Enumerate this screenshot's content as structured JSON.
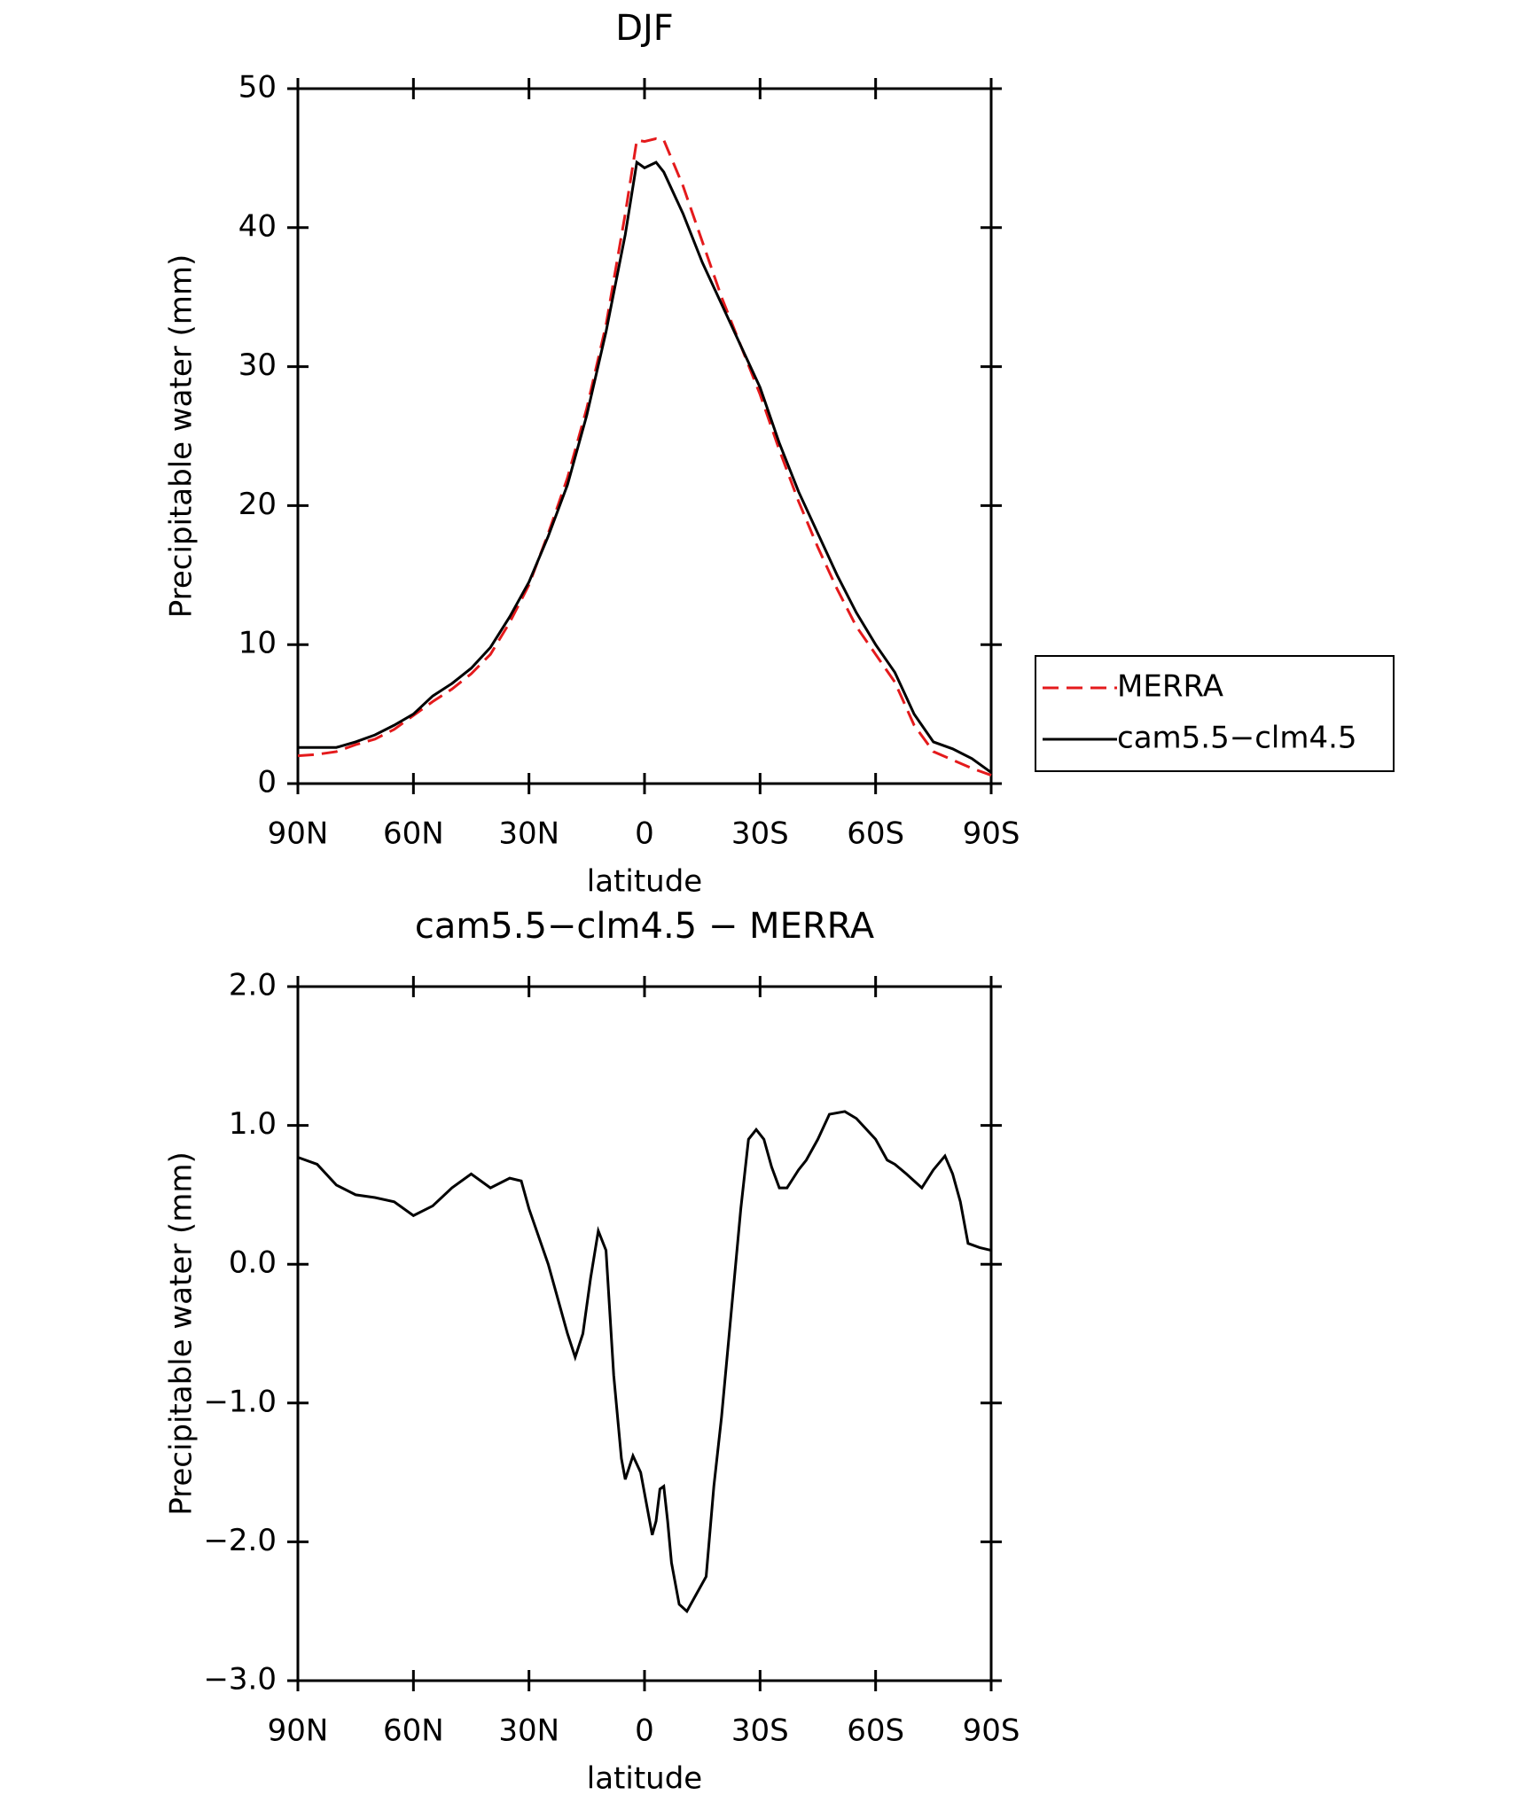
{
  "chart_data": [
    {
      "type": "line",
      "title": "DJF",
      "xlabel": "latitude",
      "ylabel": "Precipitable water (mm)",
      "x": [
        90,
        85,
        80,
        75,
        70,
        65,
        60,
        55,
        50,
        45,
        40,
        35,
        30,
        25,
        20,
        15,
        10,
        5,
        2,
        0,
        -3,
        -5,
        -10,
        -15,
        -20,
        -25,
        -30,
        -35,
        -40,
        -45,
        -50,
        -55,
        -60,
        -65,
        -70,
        -75,
        -80,
        -85,
        -90
      ],
      "xlim": [
        90,
        -90
      ],
      "xticks": [
        {
          "value": 90,
          "label": "90N"
        },
        {
          "value": 60,
          "label": "60N"
        },
        {
          "value": 30,
          "label": "30N"
        },
        0,
        {
          "value": -30,
          "label": "30S"
        },
        {
          "value": -60,
          "label": "60S"
        },
        {
          "value": -90,
          "label": "90S"
        }
      ],
      "ylim": [
        0,
        50
      ],
      "yticks": [
        0,
        10,
        20,
        30,
        40,
        50
      ],
      "legend": "right",
      "series": [
        {
          "name": "MERRA",
          "color": "#e41a1c",
          "linestyle": "dashed",
          "values": [
            2.0,
            2.1,
            2.3,
            2.8,
            3.2,
            3.9,
            4.9,
            5.9,
            6.8,
            7.9,
            9.3,
            11.6,
            14.3,
            18,
            22,
            27,
            33,
            41,
            46.3,
            46.2,
            46.4,
            46.3,
            43,
            39,
            35,
            31.5,
            28,
            24,
            20.3,
            17,
            14,
            11.3,
            9.3,
            7.3,
            4.2,
            2.3,
            1.7,
            1.1,
            0.6
          ]
        },
        {
          "name": "cam5.5−clm4.5",
          "color": "#000000",
          "linestyle": "solid",
          "values": [
            2.6,
            2.6,
            2.6,
            3.0,
            3.5,
            4.2,
            5.0,
            6.3,
            7.2,
            8.3,
            9.8,
            12.0,
            14.5,
            17.8,
            21.5,
            26.5,
            32.5,
            39.5,
            44.7,
            44.3,
            44.7,
            44,
            41,
            37.5,
            34.5,
            31.5,
            28.5,
            24.5,
            21,
            18,
            15,
            12.3,
            10,
            8,
            5,
            3,
            2.5,
            1.8,
            0.8
          ]
        }
      ]
    },
    {
      "type": "line",
      "title": "cam5.5−clm4.5 − MERRA",
      "xlabel": "latitude",
      "ylabel": "Precipitable water (mm)",
      "x": [
        90,
        85,
        80,
        75,
        70,
        65,
        60,
        55,
        50,
        45,
        40,
        35,
        32,
        30,
        25,
        22,
        20,
        18,
        16,
        14,
        12,
        10,
        8,
        6,
        5,
        3,
        1,
        -1,
        -2,
        -3,
        -4,
        -5,
        -6,
        -7,
        -9,
        -11,
        -13,
        -16,
        -18,
        -20,
        -22,
        -25,
        -27,
        -29,
        -31,
        -33,
        -35,
        -37,
        -40,
        -42,
        -45,
        -48,
        -52,
        -55,
        -60,
        -63,
        -65,
        -68,
        -70,
        -72,
        -75,
        -78,
        -80,
        -82,
        -84,
        -87,
        -90
      ],
      "xlim": [
        90,
        -90
      ],
      "xticks": [
        {
          "value": 90,
          "label": "90N"
        },
        {
          "value": 60,
          "label": "60N"
        },
        {
          "value": 30,
          "label": "30N"
        },
        0,
        {
          "value": -30,
          "label": "30S"
        },
        {
          "value": -60,
          "label": "60S"
        },
        {
          "value": -90,
          "label": "90S"
        }
      ],
      "ylim": [
        -3,
        2
      ],
      "yticks": [
        {
          "value": -3,
          "label": "−3.0"
        },
        {
          "value": -2,
          "label": "−2.0"
        },
        {
          "value": -1,
          "label": "−1.0"
        },
        {
          "value": 0,
          "label": "0.0"
        },
        {
          "value": 1,
          "label": "1.0"
        },
        {
          "value": 2,
          "label": "2.0"
        }
      ],
      "series": [
        {
          "color": "#000000",
          "linestyle": "solid",
          "values": [
            0.77,
            0.72,
            0.57,
            0.5,
            0.48,
            0.45,
            0.35,
            0.42,
            0.55,
            0.65,
            0.55,
            0.62,
            0.6,
            0.4,
            0.0,
            -0.3,
            -0.5,
            -0.67,
            -0.5,
            -0.1,
            0.24,
            0.1,
            -0.8,
            -1.4,
            -1.55,
            -1.38,
            -1.5,
            -1.8,
            -1.95,
            -1.85,
            -1.62,
            -1.6,
            -1.85,
            -2.15,
            -2.45,
            -2.5,
            -2.4,
            -2.25,
            -1.6,
            -1.1,
            -0.5,
            0.4,
            0.9,
            0.97,
            0.9,
            0.7,
            0.55,
            0.55,
            0.68,
            0.75,
            0.9,
            1.08,
            1.1,
            1.05,
            0.9,
            0.75,
            0.72,
            0.65,
            0.6,
            0.55,
            0.68,
            0.78,
            0.65,
            0.45,
            0.15,
            0.12,
            0.1
          ]
        }
      ]
    }
  ]
}
